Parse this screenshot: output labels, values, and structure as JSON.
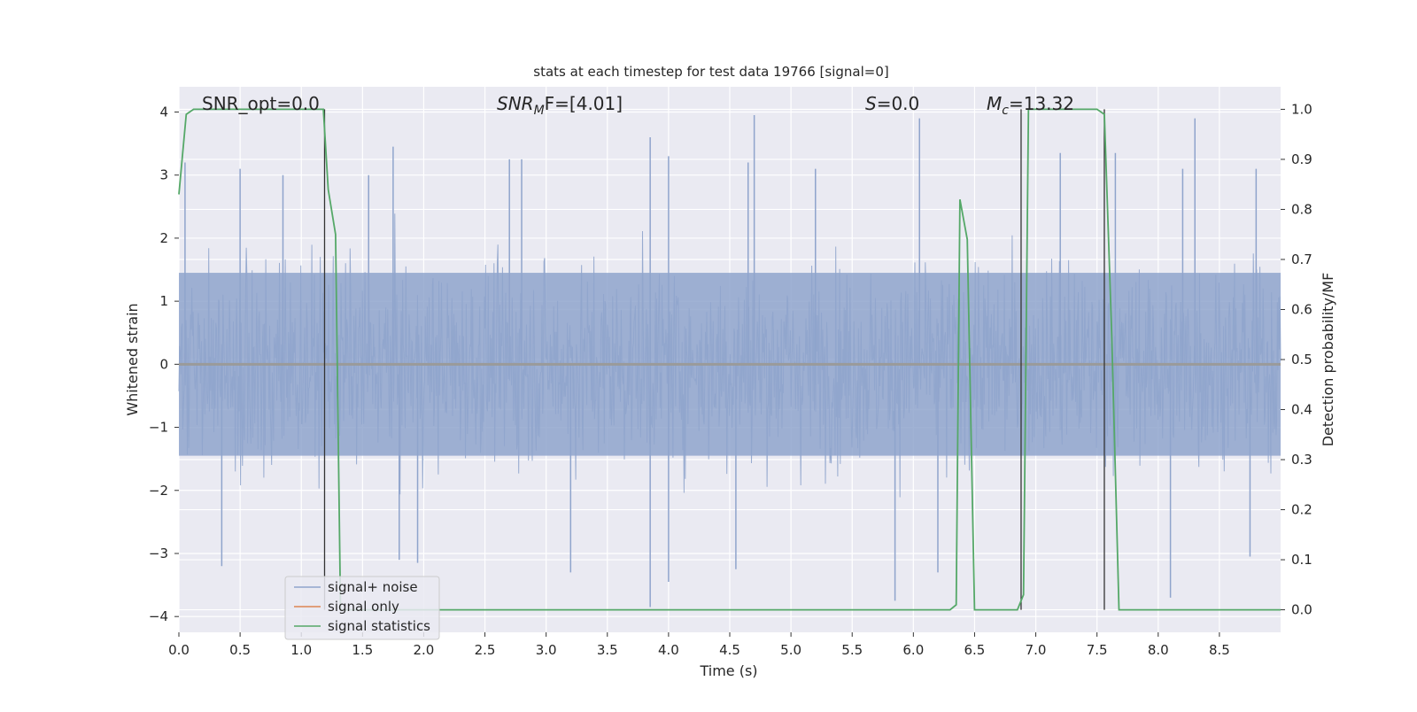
{
  "chart_data": {
    "type": "line",
    "title": "stats at each timestep for test data 19766 [signal=0]",
    "xlabel": "Time (s)",
    "ylabel": "Whitened strain",
    "y2label": "Detection probability/MF",
    "xlim": [
      0,
      9.0
    ],
    "ylim": [
      -4.25,
      4.4
    ],
    "y2lim": [
      -0.045,
      1.045
    ],
    "x_ticks": [
      0.0,
      0.5,
      1.0,
      1.5,
      2.0,
      2.5,
      3.0,
      3.5,
      4.0,
      4.5,
      5.0,
      5.5,
      6.0,
      6.5,
      7.0,
      7.5,
      8.0,
      8.5
    ],
    "x_tick_labels": [
      "0.0",
      "0.5",
      "1.0",
      "1.5",
      "2.0",
      "2.5",
      "3.0",
      "3.5",
      "4.0",
      "4.5",
      "5.0",
      "5.5",
      "6.0",
      "6.5",
      "7.0",
      "7.5",
      "8.0",
      "8.5"
    ],
    "y_ticks": [
      4,
      3,
      2,
      1,
      0,
      -1,
      -2,
      -3,
      -4
    ],
    "y_tick_labels": [
      "4",
      "3",
      "2",
      "1",
      "0",
      "−1",
      "−2",
      "−3",
      "−4"
    ],
    "y2_ticks": [
      1.0,
      0.9,
      0.8,
      0.7,
      0.6,
      0.5,
      0.4,
      0.3,
      0.2,
      0.1,
      0.0
    ],
    "y2_tick_labels": [
      "1.0",
      "0.9",
      "0.8",
      "0.7",
      "0.6",
      "0.5",
      "0.4",
      "0.3",
      "0.2",
      "0.1",
      "0.0"
    ],
    "grid": true,
    "annotations": {
      "snr_opt": "SNR_opt=0.0",
      "snr_mf_main": "SNR",
      "snr_mf_sub": "M",
      "snr_mf_rest": "F=[4.01]",
      "s_var": "S",
      "s_rest": "=0.0",
      "mc_var": "M",
      "mc_sub": "c",
      "mc_rest": "=13.32"
    },
    "legend": {
      "position": "lower-left",
      "entries": [
        "signal+ noise",
        "signal only",
        "signal statistics"
      ]
    },
    "colors": {
      "noise": "#8fa4cc",
      "signal_only": "#dd8452",
      "statistics": "#55a868",
      "plot_bg": "#eaeaf2",
      "vline": "#333333"
    },
    "series": [
      {
        "name": "signal+ noise",
        "noise_seed": 19766,
        "spikes": [
          {
            "x": 0.05,
            "y": 3.2
          },
          {
            "x": 0.5,
            "y": 3.1
          },
          {
            "x": 0.85,
            "y": 3.0
          },
          {
            "x": 1.55,
            "y": 3.0
          },
          {
            "x": 1.75,
            "y": 3.45
          },
          {
            "x": 2.7,
            "y": 3.25
          },
          {
            "x": 2.8,
            "y": 3.25
          },
          {
            "x": 3.85,
            "y": 3.6
          },
          {
            "x": 4.0,
            "y": 3.3
          },
          {
            "x": 4.7,
            "y": 3.95
          },
          {
            "x": 4.65,
            "y": 3.2
          },
          {
            "x": 5.2,
            "y": 3.1
          },
          {
            "x": 6.05,
            "y": 3.9
          },
          {
            "x": 7.2,
            "y": 3.35
          },
          {
            "x": 7.65,
            "y": 3.35
          },
          {
            "x": 8.2,
            "y": 3.1
          },
          {
            "x": 8.3,
            "y": 3.9
          },
          {
            "x": 8.8,
            "y": 3.1
          },
          {
            "x": 0.35,
            "y": -3.2
          },
          {
            "x": 1.8,
            "y": -3.1
          },
          {
            "x": 1.95,
            "y": -3.15
          },
          {
            "x": 3.85,
            "y": -3.85
          },
          {
            "x": 3.2,
            "y": -3.3
          },
          {
            "x": 4.0,
            "y": -3.45
          },
          {
            "x": 4.55,
            "y": -3.25
          },
          {
            "x": 5.85,
            "y": -3.75
          },
          {
            "x": 6.2,
            "y": -3.3
          },
          {
            "x": 8.1,
            "y": -3.7
          },
          {
            "x": 8.75,
            "y": -3.05
          }
        ]
      },
      {
        "name": "signal only",
        "x": [
          0.0,
          9.0
        ],
        "y": [
          0.0,
          0.0
        ]
      },
      {
        "name": "signal statistics",
        "x": [
          0.0,
          0.06,
          0.12,
          1.18,
          1.22,
          1.28,
          1.32,
          6.3,
          6.35,
          6.38,
          6.44,
          6.5,
          6.85,
          6.9,
          6.94,
          7.5,
          7.56,
          7.62,
          7.68,
          7.75,
          9.0
        ],
        "y": [
          0.83,
          0.99,
          1.0,
          1.0,
          0.84,
          0.75,
          0.0,
          0.0,
          0.01,
          0.82,
          0.74,
          0.0,
          0.0,
          0.03,
          1.0,
          1.0,
          0.99,
          0.55,
          0.0,
          0.0,
          0.0
        ]
      }
    ],
    "vlines": [
      1.19,
      6.88,
      7.56
    ]
  }
}
